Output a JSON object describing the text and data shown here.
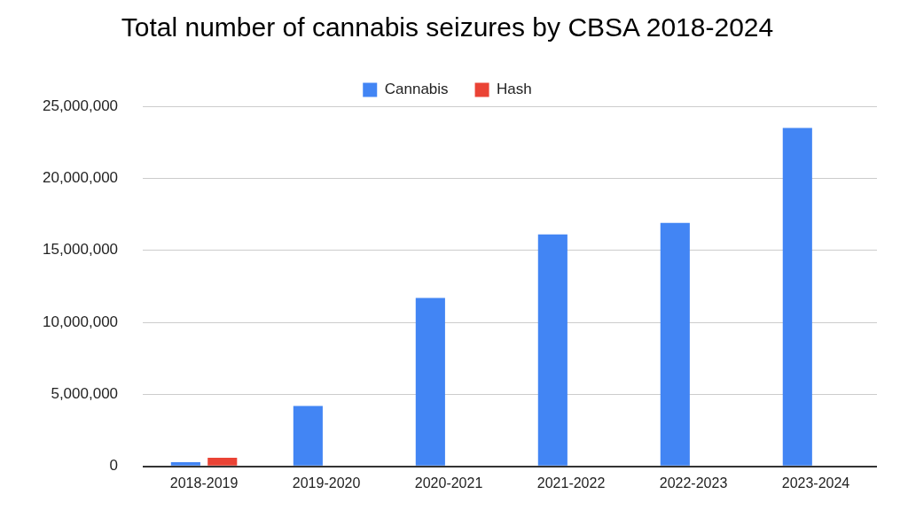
{
  "chart_data": {
    "type": "bar",
    "title": "Total number of cannabis seizures by CBSA 2018-2024",
    "categories": [
      "2018-2019",
      "2019-2020",
      "2020-2021",
      "2021-2022",
      "2022-2023",
      "2023-2024"
    ],
    "series": [
      {
        "name": "Cannabis",
        "color": "#4285f4",
        "values": [
          300000,
          4200000,
          11700000,
          16100000,
          16900000,
          23500000
        ]
      },
      {
        "name": "Hash",
        "color": "#ea4335",
        "values": [
          600000,
          0,
          0,
          0,
          0,
          0
        ]
      }
    ],
    "ylim": [
      0,
      25000000
    ],
    "yticks": [
      0,
      {
        "value": 5000000,
        "label": "5,000,000"
      },
      {
        "value": 10000000,
        "label": "10,000,000"
      },
      {
        "value": 15000000,
        "label": "15,000,000"
      },
      {
        "value": 20000000,
        "label": "20,000,000"
      },
      {
        "value": 25000000,
        "label": "25,000,000"
      }
    ],
    "grid": "y",
    "legend": "top"
  }
}
